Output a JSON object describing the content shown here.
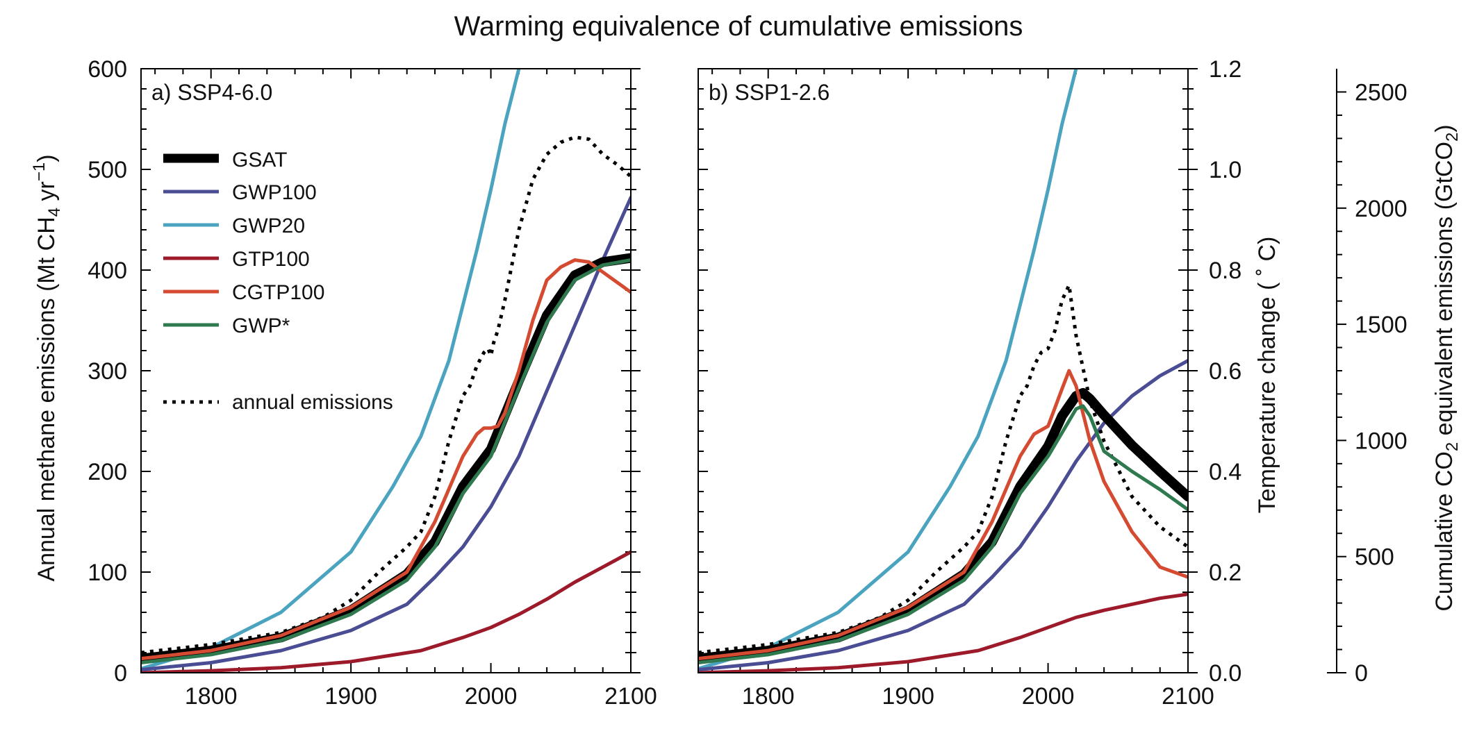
{
  "figure": {
    "title": "Warming equivalence of cumulative emissions"
  },
  "axes": {
    "left_ylabel_main": "Annual methane emissions (Mt CH",
    "left_ylabel_sub": "4",
    "left_ylabel_mid": " yr",
    "left_ylabel_sup": "−1",
    "left_ylabel_end": ")",
    "temp_ylabel": "Temperature change ( ˚ C)",
    "co2_ylabel_a": "Cumulative CO",
    "co2_ylabel_sub1": "2",
    "co2_ylabel_b": " equivalent emissions (GtCO",
    "co2_ylabel_sub2": "2",
    "co2_ylabel_c": ")"
  },
  "legend": {
    "items": [
      {
        "key": "GSAT",
        "label": "GSAT"
      },
      {
        "key": "GWP100",
        "label": "GWP100"
      },
      {
        "key": "GWP20",
        "label": "GWP20"
      },
      {
        "key": "GTP100",
        "label": "GTP100"
      },
      {
        "key": "CGTP100",
        "label": "CGTP100"
      },
      {
        "key": "GWPstar",
        "label": "GWP*"
      },
      {
        "key": "annual",
        "label": "annual emissions"
      }
    ]
  },
  "colors": {
    "GSAT": "#000000",
    "GWP100": "#4a4d93",
    "GWP20": "#4aa3bf",
    "GTP100": "#9c1a2a",
    "CGTP100": "#d54b32",
    "GWPstar": "#2e7a4e",
    "annual": "#000000"
  },
  "chart_data": [
    {
      "type": "line",
      "title": "a) SSP4-6.0",
      "xlim": [
        1750,
        2100
      ],
      "x_ticks": [
        1800,
        1900,
        2000,
        2100
      ],
      "ylim_left": [
        0,
        600
      ],
      "y_ticks_left": [
        0,
        100,
        200,
        300,
        400,
        500,
        600
      ],
      "series": [
        {
          "name": "GSAT",
          "x": [
            1750,
            1800,
            1850,
            1900,
            1940,
            1960,
            1980,
            2000,
            2020,
            2040,
            2060,
            2080,
            2100
          ],
          "y": [
            14,
            22,
            35,
            62,
            98,
            130,
            185,
            222,
            290,
            355,
            395,
            408,
            412
          ]
        },
        {
          "name": "GWP100",
          "x": [
            1750,
            1800,
            1850,
            1900,
            1940,
            1960,
            1980,
            2000,
            2020,
            2040,
            2060,
            2080,
            2100
          ],
          "y": [
            3,
            10,
            22,
            42,
            68,
            95,
            125,
            165,
            215,
            280,
            345,
            410,
            472
          ]
        },
        {
          "name": "GWP20",
          "x": [
            1750,
            1800,
            1850,
            1900,
            1930,
            1950,
            1970,
            1990,
            2000,
            2010,
            2020
          ],
          "y": [
            4,
            25,
            60,
            120,
            185,
            235,
            310,
            420,
            480,
            545,
            600
          ]
        },
        {
          "name": "GTP100",
          "x": [
            1750,
            1800,
            1850,
            1900,
            1950,
            1980,
            2000,
            2020,
            2040,
            2060,
            2080,
            2100
          ],
          "y": [
            0,
            2,
            5,
            11,
            22,
            35,
            45,
            58,
            73,
            90,
            105,
            120
          ]
        },
        {
          "name": "CGTP100",
          "x": [
            1750,
            1800,
            1850,
            1900,
            1940,
            1960,
            1980,
            1990,
            1995,
            2000,
            2005,
            2010,
            2020,
            2030,
            2040,
            2050,
            2060,
            2070,
            2080,
            2100
          ],
          "y": [
            14,
            22,
            37,
            65,
            100,
            150,
            215,
            237,
            243,
            243,
            245,
            258,
            300,
            350,
            390,
            403,
            410,
            408,
            398,
            378
          ]
        },
        {
          "name": "GWP*",
          "x": [
            1750,
            1800,
            1850,
            1900,
            1940,
            1960,
            1980,
            2000,
            2020,
            2040,
            2060,
            2080,
            2100
          ],
          "y": [
            10,
            18,
            32,
            58,
            92,
            125,
            178,
            215,
            283,
            348,
            390,
            405,
            410
          ]
        },
        {
          "name": "annual emissions",
          "x": [
            1750,
            1800,
            1850,
            1880,
            1900,
            1920,
            1940,
            1950,
            1960,
            1970,
            1980,
            1985,
            1990,
            1995,
            1998,
            2000,
            2002,
            2005,
            2010,
            2020,
            2030,
            2040,
            2050,
            2060,
            2070,
            2080,
            2090,
            2100
          ],
          "y": [
            20,
            28,
            40,
            55,
            72,
            100,
            125,
            140,
            175,
            230,
            275,
            285,
            305,
            318,
            322,
            315,
            328,
            340,
            370,
            440,
            490,
            515,
            527,
            532,
            530,
            515,
            505,
            493
          ]
        }
      ]
    },
    {
      "type": "line",
      "title": "b) SSP1-2.6",
      "xlim": [
        1750,
        2100
      ],
      "x_ticks": [
        1800,
        1900,
        2000,
        2100
      ],
      "ylim_temperature": [
        0,
        1.2
      ],
      "y_ticks_temperature": [
        0.0,
        0.2,
        0.4,
        0.6,
        0.8,
        1.0,
        1.2
      ],
      "ylim_cumulative_co2": [
        0,
        2600
      ],
      "y_ticks_cumulative_co2": [
        0,
        500,
        1000,
        1500,
        2000,
        2500
      ],
      "series": [
        {
          "name": "GSAT",
          "x": [
            1750,
            1800,
            1850,
            1900,
            1940,
            1960,
            1980,
            2000,
            2010,
            2020,
            2025,
            2030,
            2040,
            2060,
            2080,
            2100
          ],
          "y": [
            14,
            22,
            35,
            62,
            98,
            130,
            185,
            225,
            255,
            275,
            278,
            272,
            256,
            226,
            200,
            175
          ]
        },
        {
          "name": "GWP100",
          "x": [
            1750,
            1800,
            1850,
            1900,
            1940,
            1960,
            1980,
            2000,
            2020,
            2040,
            2060,
            2080,
            2100
          ],
          "y": [
            3,
            10,
            22,
            42,
            68,
            95,
            125,
            165,
            210,
            248,
            275,
            295,
            310
          ]
        },
        {
          "name": "GWP20",
          "x": [
            1750,
            1800,
            1850,
            1900,
            1930,
            1950,
            1970,
            1990,
            2000,
            2010,
            2020
          ],
          "y": [
            4,
            25,
            60,
            120,
            185,
            235,
            310,
            420,
            480,
            545,
            600
          ]
        },
        {
          "name": "GTP100",
          "x": [
            1750,
            1800,
            1850,
            1900,
            1950,
            1980,
            2000,
            2020,
            2040,
            2060,
            2080,
            2100
          ],
          "y": [
            0,
            2,
            5,
            11,
            22,
            35,
            45,
            55,
            62,
            68,
            74,
            78
          ]
        },
        {
          "name": "CGTP100",
          "x": [
            1750,
            1800,
            1850,
            1900,
            1940,
            1960,
            1980,
            1990,
            2000,
            2010,
            2015,
            2020,
            2030,
            2040,
            2060,
            2080,
            2100
          ],
          "y": [
            14,
            22,
            37,
            65,
            100,
            150,
            215,
            237,
            245,
            282,
            300,
            285,
            230,
            190,
            140,
            105,
            95
          ]
        },
        {
          "name": "GWP*",
          "x": [
            1750,
            1800,
            1850,
            1900,
            1940,
            1960,
            1980,
            2000,
            2020,
            2025,
            2030,
            2040,
            2060,
            2080,
            2100
          ],
          "y": [
            10,
            18,
            32,
            58,
            92,
            125,
            178,
            215,
            262,
            265,
            255,
            220,
            200,
            182,
            162
          ]
        },
        {
          "name": "annual emissions",
          "x": [
            1750,
            1800,
            1850,
            1880,
            1900,
            1920,
            1940,
            1950,
            1960,
            1970,
            1980,
            1985,
            1990,
            1995,
            2000,
            2005,
            2010,
            2015,
            2020,
            2030,
            2040,
            2060,
            2080,
            2100
          ],
          "y": [
            20,
            28,
            40,
            55,
            72,
            100,
            125,
            140,
            175,
            230,
            275,
            285,
            305,
            318,
            322,
            340,
            370,
            385,
            335,
            270,
            230,
            175,
            145,
            125
          ]
        }
      ]
    }
  ]
}
